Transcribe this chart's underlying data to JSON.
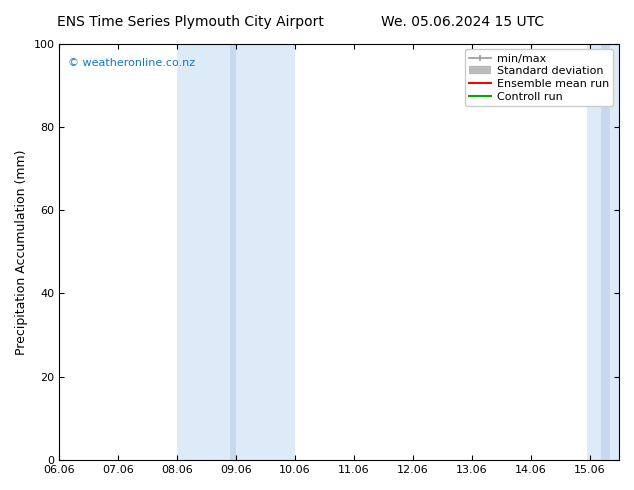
{
  "title_left": "ENS Time Series Plymouth City Airport",
  "title_right": "We. 05.06.2024 15 UTC",
  "ylabel": "Precipitation Accumulation (mm)",
  "ylim": [
    0,
    100
  ],
  "yticks": [
    0,
    20,
    40,
    60,
    80,
    100
  ],
  "xtick_labels": [
    "06.06",
    "07.06",
    "08.06",
    "09.06",
    "10.06",
    "11.06",
    "12.06",
    "13.06",
    "14.06",
    "15.06"
  ],
  "xtick_positions": [
    6,
    7,
    8,
    9,
    10,
    11,
    12,
    13,
    14,
    15
  ],
  "xlim": [
    6.0,
    15.5
  ],
  "shaded_regions": [
    {
      "x_start": 8.0,
      "x_end": 8.9,
      "color": "#ddeaf8"
    },
    {
      "x_start": 8.9,
      "x_end": 9.0,
      "color": "#c8d9ef"
    },
    {
      "x_start": 9.0,
      "x_end": 10.0,
      "color": "#ddeaf8"
    },
    {
      "x_start": 14.95,
      "x_end": 15.2,
      "color": "#ddeaf8"
    },
    {
      "x_start": 15.2,
      "x_end": 15.35,
      "color": "#c8d9ef"
    },
    {
      "x_start": 15.35,
      "x_end": 15.5,
      "color": "#ddeaf8"
    }
  ],
  "watermark_text": "© weatheronline.co.nz",
  "watermark_color": "#1177cc",
  "legend_labels": [
    "min/max",
    "Standard deviation",
    "Ensemble mean run",
    "Controll run"
  ],
  "legend_colors_line": [
    "#999999",
    "#bbbbbb",
    "#ff0000",
    "#00aa00"
  ],
  "background_color": "#ffffff",
  "title_fontsize": 10,
  "label_fontsize": 9,
  "tick_fontsize": 8
}
